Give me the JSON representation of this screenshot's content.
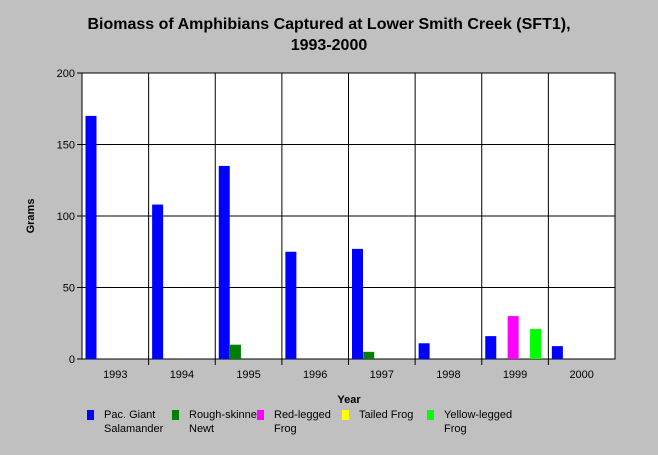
{
  "chart_data": {
    "type": "bar",
    "title_lines": [
      "Biomass of Amphibians Captured at Lower Smith Creek (SFT1),",
      "1993-2000"
    ],
    "xlabel": "Year",
    "ylabel": "Grams",
    "ylim": [
      0,
      200
    ],
    "yticks": [
      0,
      50,
      100,
      150,
      200
    ],
    "grid": true,
    "legend_position": "bottom",
    "categories": [
      "1993",
      "1994",
      "1995",
      "1996",
      "1997",
      "1998",
      "1999",
      "2000"
    ],
    "series": [
      {
        "name_lines": [
          "Pac. Giant",
          "Salamander"
        ],
        "color": "#0000ff",
        "values": [
          170,
          108,
          135,
          75,
          77,
          11,
          16,
          9
        ]
      },
      {
        "name_lines": [
          "Rough-skinned",
          "Newt"
        ],
        "color": "#008000",
        "values": [
          0,
          0,
          10,
          0,
          5,
          0,
          0,
          0
        ]
      },
      {
        "name_lines": [
          "Red-legged",
          "Frog"
        ],
        "color": "#ff00ff",
        "values": [
          0,
          0,
          0,
          0,
          0,
          0,
          30,
          0
        ]
      },
      {
        "name_lines": [
          "Tailed Frog"
        ],
        "color": "#ffff00",
        "values": [
          0,
          0,
          0,
          0,
          0,
          0,
          0,
          0
        ]
      },
      {
        "name_lines": [
          "Yellow-legged",
          "Frog"
        ],
        "color": "#00ff00",
        "values": [
          0,
          0,
          0,
          0,
          0,
          0,
          21,
          0
        ]
      }
    ]
  }
}
